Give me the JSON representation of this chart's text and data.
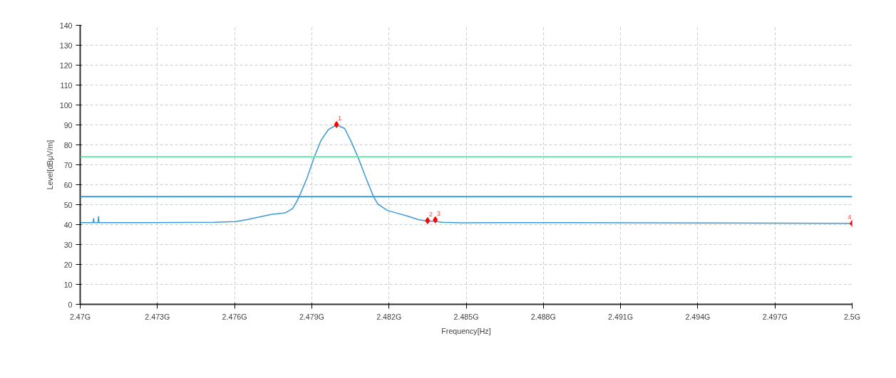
{
  "chart_data": {
    "type": "line",
    "xlabel": "Frequency[Hz]",
    "ylabel": "Level[dBμV/m]",
    "xlim": [
      2.47,
      2.5
    ],
    "xticks": [
      {
        "value": 2.47,
        "label": "2.47G"
      },
      {
        "value": 2.473,
        "label": "2.473G"
      },
      {
        "value": 2.476,
        "label": "2.476G"
      },
      {
        "value": 2.479,
        "label": "2.479G"
      },
      {
        "value": 2.482,
        "label": "2.482G"
      },
      {
        "value": 2.485,
        "label": "2.485G"
      },
      {
        "value": 2.488,
        "label": "2.488G"
      },
      {
        "value": 2.491,
        "label": "2.491G"
      },
      {
        "value": 2.494,
        "label": "2.494G"
      },
      {
        "value": 2.497,
        "label": "2.497G"
      },
      {
        "value": 2.5,
        "label": "2.5G"
      }
    ],
    "ylim": [
      0,
      140
    ],
    "yticks": [
      0,
      10,
      20,
      30,
      40,
      50,
      60,
      70,
      80,
      90,
      100,
      110,
      120,
      130,
      140
    ],
    "grid": true,
    "series": [
      {
        "color": "#3a9ad6",
        "line_style": "solid",
        "x": [
          2.47,
          2.47036,
          2.4705,
          2.47052,
          2.47054,
          2.47069,
          2.47071,
          2.47073,
          2.47244,
          2.47521,
          2.47604,
          2.47645,
          2.47687,
          2.47742,
          2.47798,
          2.47825,
          2.47839,
          2.4785,
          2.47881,
          2.47909,
          2.47936,
          2.47964,
          2.47996,
          2.48028,
          2.48055,
          2.4808,
          2.48111,
          2.48141,
          2.48158,
          2.48194,
          2.48241,
          2.48274,
          2.48316,
          2.4835,
          2.4838,
          2.48407,
          2.48482,
          2.48629,
          2.48906,
          2.49183,
          2.4946,
          2.49737,
          2.5
        ],
        "values": [
          41.0,
          41.0,
          41.0,
          43.0,
          41.0,
          41.0,
          44.0,
          41.0,
          41.0,
          41.2,
          41.5,
          42.4,
          43.6,
          45.1,
          45.9,
          48.0,
          51.0,
          53.7,
          63.2,
          73.7,
          82.3,
          87.6,
          90.0,
          88.2,
          81.1,
          73.7,
          63.2,
          53.7,
          50.1,
          47.1,
          45.4,
          44.2,
          42.4,
          41.8,
          41.6,
          41.2,
          40.9,
          41.0,
          41.0,
          40.9,
          40.8,
          40.7,
          40.6
        ]
      },
      {
        "type": "scatter",
        "color": "#ff0000",
        "marker": "diamond",
        "x": [
          2.47996,
          2.4835,
          2.4838,
          2.5
        ],
        "values": [
          90.2,
          42.0,
          42.4,
          40.6
        ]
      }
    ],
    "ref_lines": [
      {
        "axis": "y",
        "value": 74,
        "color": "#66e8a8"
      },
      {
        "axis": "y",
        "value": 54,
        "color": "#3a9ad6"
      }
    ],
    "annotations": [
      {
        "text": "1",
        "x": 2.47996,
        "y": 90.2
      },
      {
        "text": "2",
        "x": 2.4835,
        "y": 42.0
      },
      {
        "text": "3",
        "x": 2.4838,
        "y": 42.4
      },
      {
        "text": "4",
        "x": 2.5,
        "y": 40.6
      }
    ]
  }
}
